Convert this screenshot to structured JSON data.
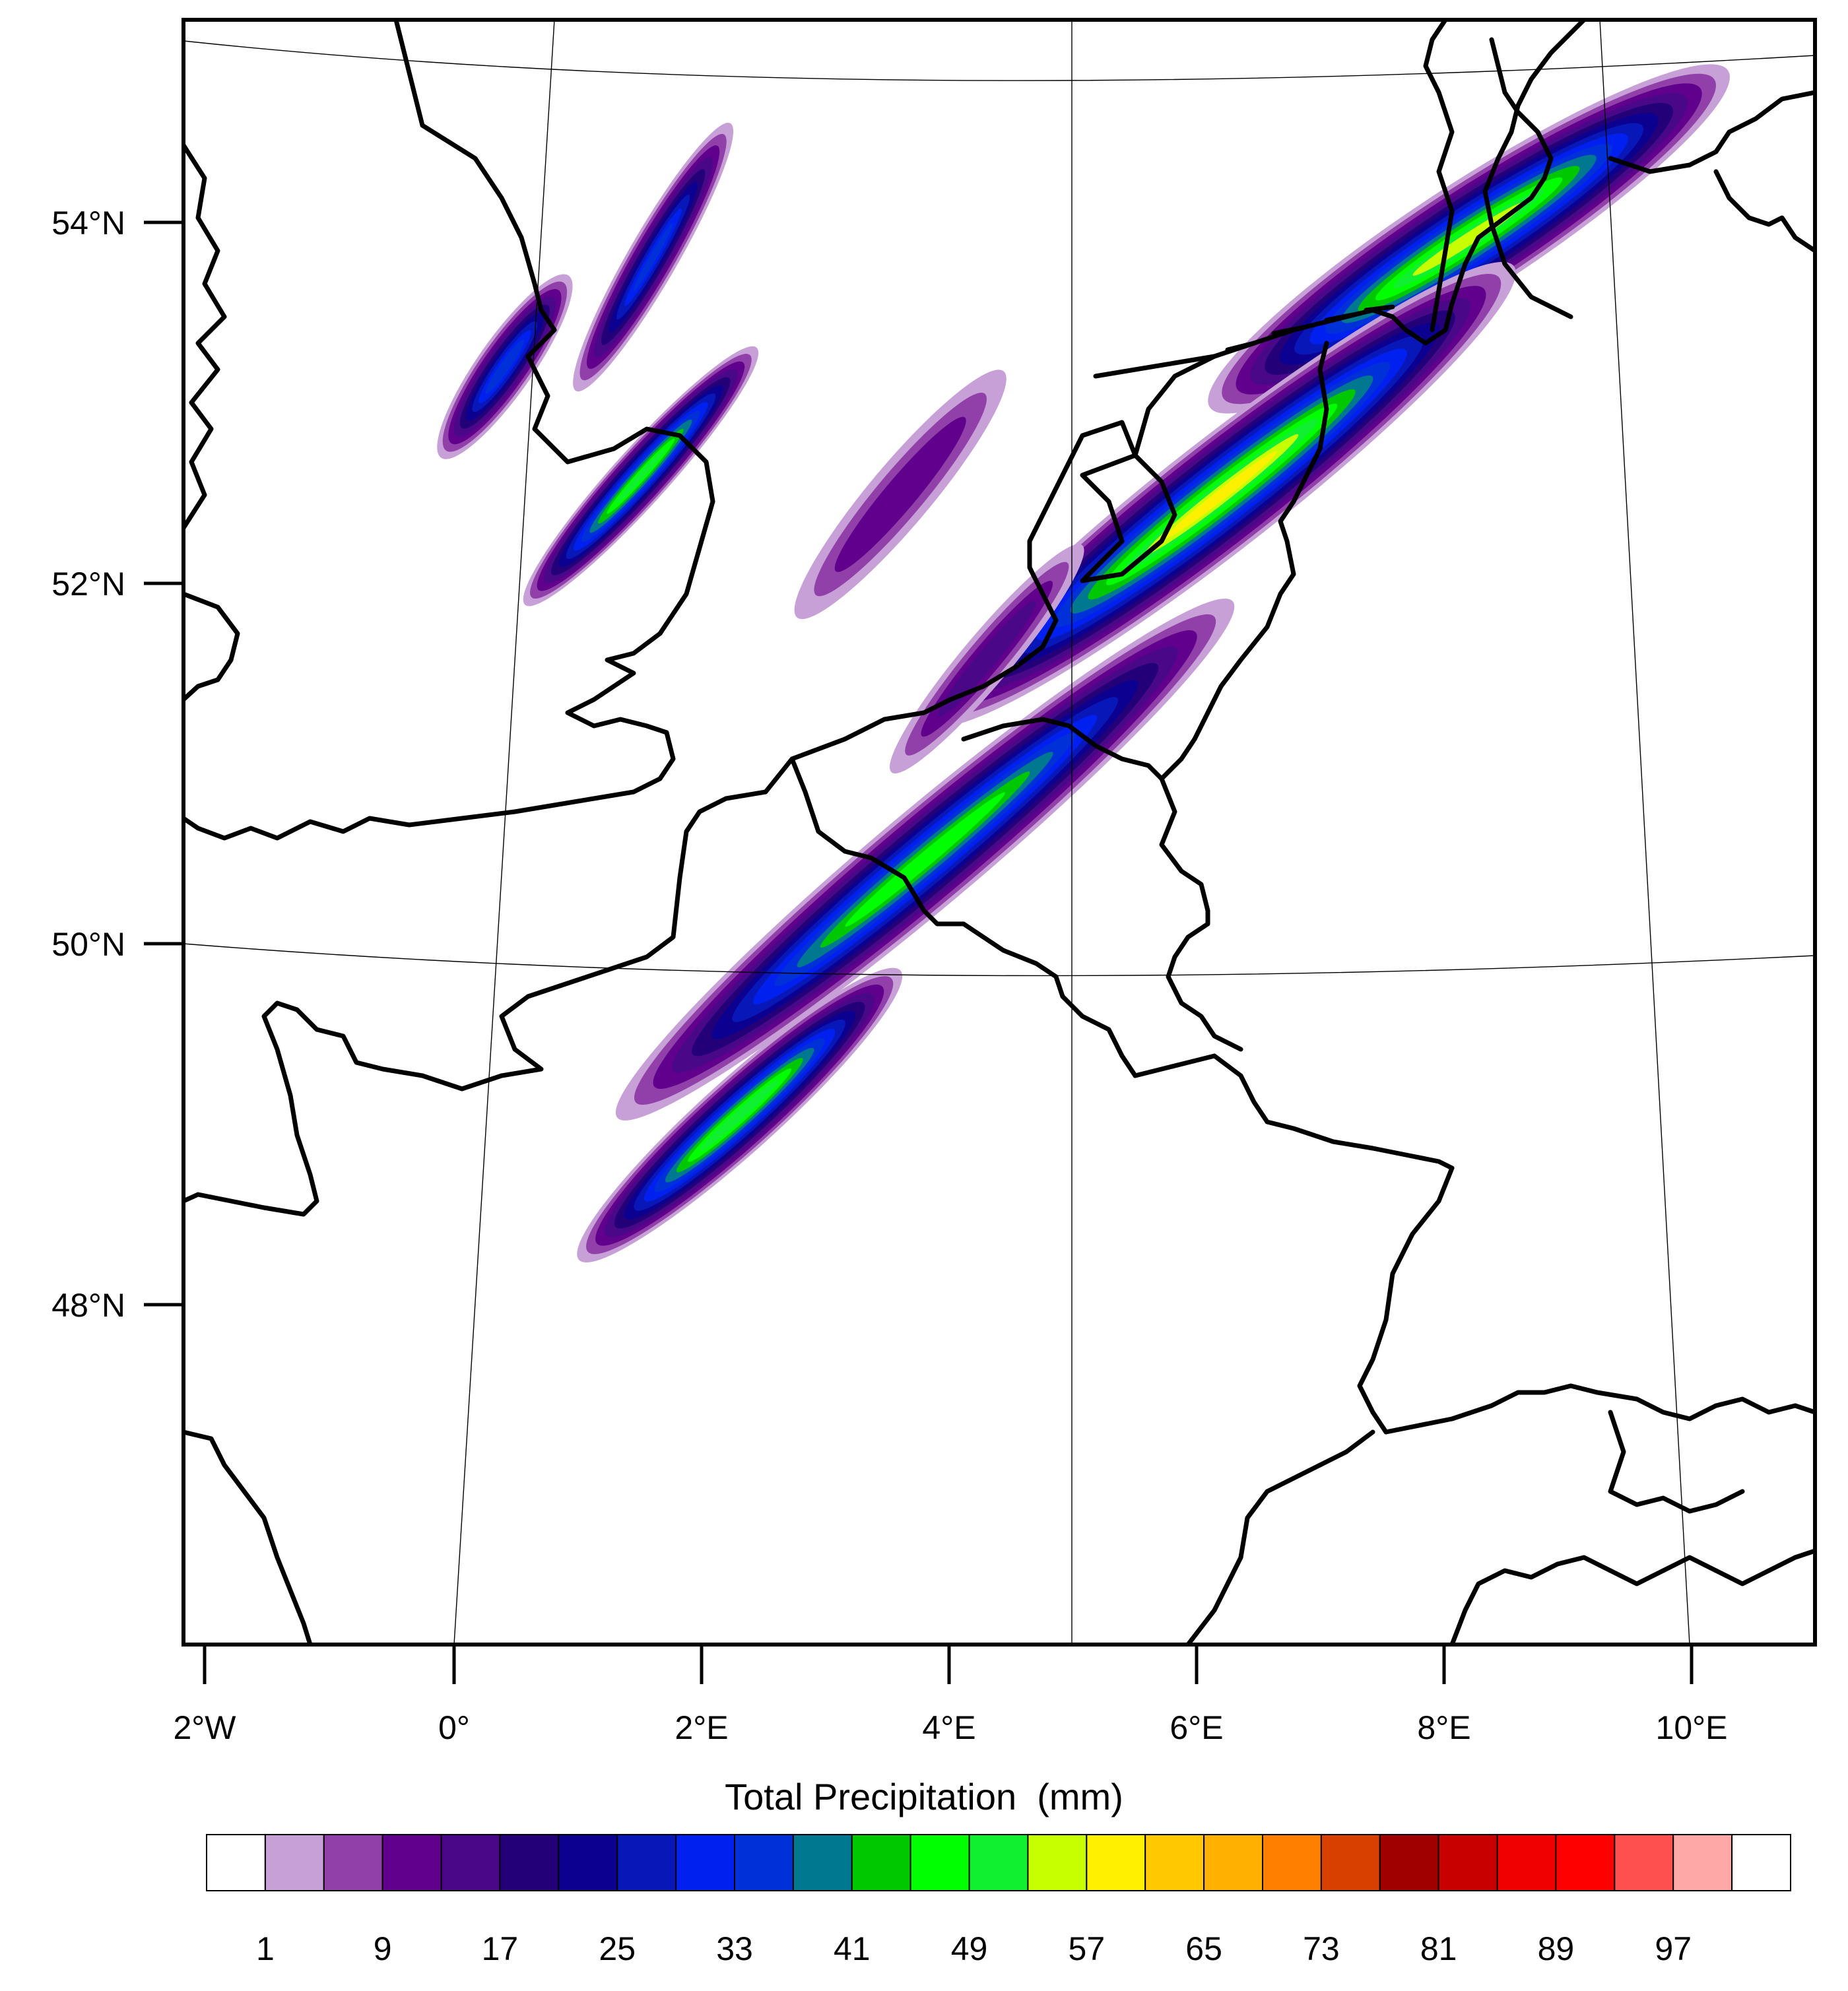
{
  "map": {
    "title": "Total Precipitation  (mm)",
    "projection": "lambert-conformal",
    "lat_labels": [
      "54°N",
      "52°N",
      "50°N",
      "48°N"
    ],
    "lon_labels": [
      "2°W",
      "0°",
      "2°E",
      "4°E",
      "6°E",
      "8°E",
      "10°E"
    ],
    "extent": {
      "lon_min": -2.2,
      "lon_max": 11.0,
      "lat_min": 46.2,
      "lat_max": 55.1
    }
  },
  "colorbar": {
    "ticks": [
      "1",
      "9",
      "17",
      "25",
      "33",
      "41",
      "49",
      "57",
      "65",
      "73",
      "81",
      "89",
      "97"
    ],
    "colors": [
      "#FFFFFF",
      "#C8A0D8",
      "#9040A8",
      "#60008C",
      "#480888",
      "#240078",
      "#0C0090",
      "#0818B8",
      "#0020F0",
      "#0030D8",
      "#007890",
      "#00C800",
      "#00FF00",
      "#10F030",
      "#C8FF00",
      "#FFF000",
      "#FFC800",
      "#FFB000",
      "#FF8000",
      "#D84000",
      "#A00000",
      "#C80000",
      "#F00000",
      "#FF0000",
      "#FF5050",
      "#FFA8A8",
      "#FFFFFF"
    ]
  },
  "precip_bands": [
    {
      "lon": 8.2,
      "lat": 53.9,
      "len_deg": 5.0,
      "wid_deg": 0.9,
      "angle": -33,
      "peak_mm": 55
    },
    {
      "lon": 6.2,
      "lat": 52.5,
      "len_deg": 6.0,
      "wid_deg": 0.9,
      "angle": -38,
      "peak_mm": 58
    },
    {
      "lon": 3.8,
      "lat": 50.5,
      "len_deg": 6.5,
      "wid_deg": 0.8,
      "angle": -40,
      "peak_mm": 48
    },
    {
      "lon": 2.3,
      "lat": 49.1,
      "len_deg": 3.5,
      "wid_deg": 0.6,
      "angle": -42,
      "peak_mm": 52
    },
    {
      "lon": 1.6,
      "lat": 53.8,
      "len_deg": 2.5,
      "wid_deg": 0.4,
      "angle": -60,
      "peak_mm": 33
    },
    {
      "lon": 1.5,
      "lat": 52.6,
      "len_deg": 2.8,
      "wid_deg": 0.45,
      "angle": -48,
      "peak_mm": 50
    },
    {
      "lon": 0.4,
      "lat": 53.2,
      "len_deg": 1.8,
      "wid_deg": 0.45,
      "angle": -55,
      "peak_mm": 35
    },
    {
      "lon": 3.6,
      "lat": 52.5,
      "len_deg": 2.6,
      "wid_deg": 0.5,
      "angle": -50,
      "peak_mm": 12
    },
    {
      "lon": 4.3,
      "lat": 51.6,
      "len_deg": 2.4,
      "wid_deg": 0.4,
      "angle": -50,
      "peak_mm": 15
    }
  ]
}
